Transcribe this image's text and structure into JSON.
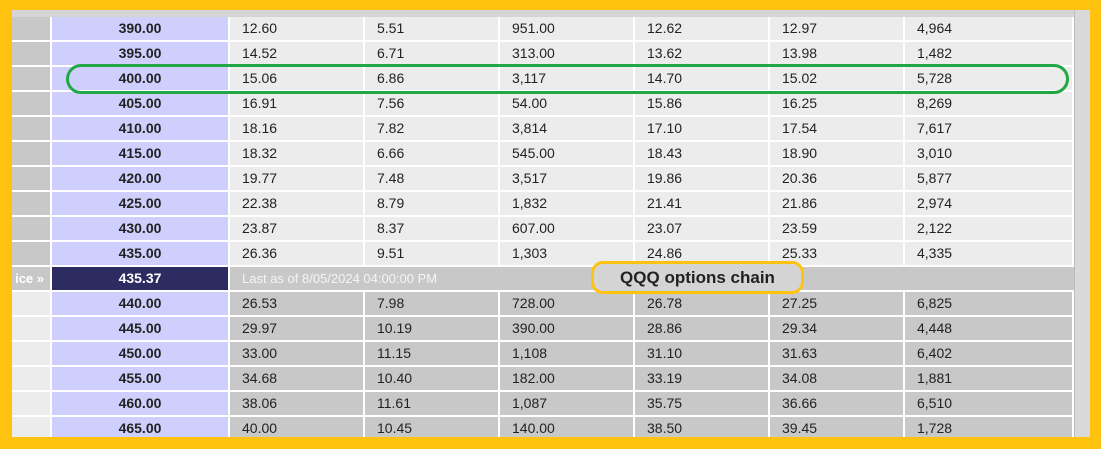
{
  "price_row": {
    "label": "ice »",
    "price": "435.37",
    "note": "Last as of 8/05/2024 04:00:00 PM"
  },
  "annotation": {
    "label": "QQQ options chain"
  },
  "colors": {
    "frame": "#FFC20E",
    "highlight": "#21a845",
    "strike_bg": "#cfcffd",
    "price_bg": "#2c2c60"
  },
  "rows_above": [
    {
      "strike": "390.00",
      "c2": "12.60",
      "c3": "5.51",
      "c4": "951.00",
      "c5": "12.62",
      "c6": "12.97",
      "c7": "4,964"
    },
    {
      "strike": "395.00",
      "c2": "14.52",
      "c3": "6.71",
      "c4": "313.00",
      "c5": "13.62",
      "c6": "13.98",
      "c7": "1,482"
    },
    {
      "strike": "400.00",
      "c2": "15.06",
      "c3": "6.86",
      "c4": "3,117",
      "c5": "14.70",
      "c6": "15.02",
      "c7": "5,728"
    },
    {
      "strike": "405.00",
      "c2": "16.91",
      "c3": "7.56",
      "c4": "54.00",
      "c5": "15.86",
      "c6": "16.25",
      "c7": "8,269"
    },
    {
      "strike": "410.00",
      "c2": "18.16",
      "c3": "7.82",
      "c4": "3,814",
      "c5": "17.10",
      "c6": "17.54",
      "c7": "7,617"
    },
    {
      "strike": "415.00",
      "c2": "18.32",
      "c3": "6.66",
      "c4": "545.00",
      "c5": "18.43",
      "c6": "18.90",
      "c7": "3,010"
    },
    {
      "strike": "420.00",
      "c2": "19.77",
      "c3": "7.48",
      "c4": "3,517",
      "c5": "19.86",
      "c6": "20.36",
      "c7": "5,877"
    },
    {
      "strike": "425.00",
      "c2": "22.38",
      "c3": "8.79",
      "c4": "1,832",
      "c5": "21.41",
      "c6": "21.86",
      "c7": "2,974"
    },
    {
      "strike": "430.00",
      "c2": "23.87",
      "c3": "8.37",
      "c4": "607.00",
      "c5": "23.07",
      "c6": "23.59",
      "c7": "2,122"
    },
    {
      "strike": "435.00",
      "c2": "26.36",
      "c3": "9.51",
      "c4": "1,303",
      "c5": "24.86",
      "c6": "25.33",
      "c7": "4,335"
    }
  ],
  "rows_below": [
    {
      "strike": "440.00",
      "c2": "26.53",
      "c3": "7.98",
      "c4": "728.00",
      "c5": "26.78",
      "c6": "27.25",
      "c7": "6,825"
    },
    {
      "strike": "445.00",
      "c2": "29.97",
      "c3": "10.19",
      "c4": "390.00",
      "c5": "28.86",
      "c6": "29.34",
      "c7": "4,448"
    },
    {
      "strike": "450.00",
      "c2": "33.00",
      "c3": "11.15",
      "c4": "1,108",
      "c5": "31.10",
      "c6": "31.63",
      "c7": "6,402"
    },
    {
      "strike": "455.00",
      "c2": "34.68",
      "c3": "10.40",
      "c4": "182.00",
      "c5": "33.19",
      "c6": "34.08",
      "c7": "1,881"
    },
    {
      "strike": "460.00",
      "c2": "38.06",
      "c3": "11.61",
      "c4": "1,087",
      "c5": "35.75",
      "c6": "36.66",
      "c7": "6,510"
    },
    {
      "strike": "465.00",
      "c2": "40.00",
      "c3": "10.45",
      "c4": "140.00",
      "c5": "38.50",
      "c6": "39.45",
      "c7": "1,728"
    }
  ]
}
